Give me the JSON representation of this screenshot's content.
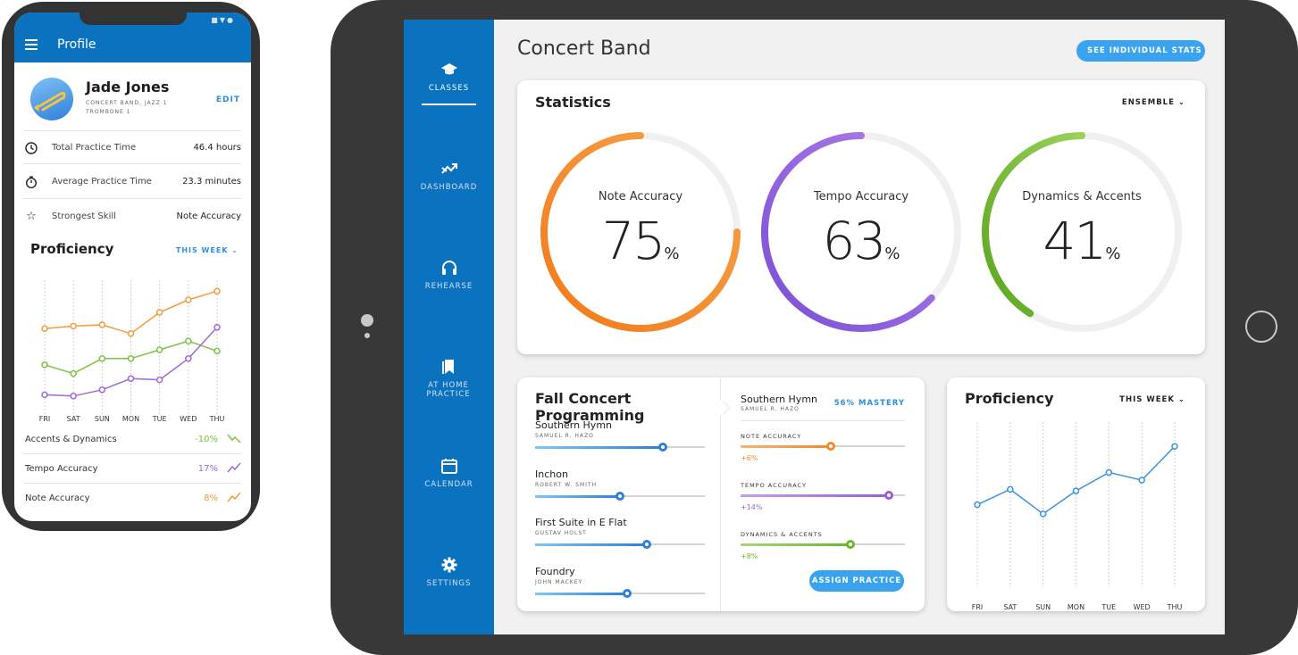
{
  "phone": {
    "title": "Profile",
    "user": {
      "name": "Jade Jones",
      "groups": "CONCERT BAND, JAZZ 1",
      "instrument": "TROMBONE 1",
      "edit_label": "EDIT"
    },
    "stats": [
      {
        "icon": "clock-icon",
        "label": "Total Practice Time",
        "value": "46.4 hours"
      },
      {
        "icon": "stopwatch-icon",
        "label": "Average Practice Time",
        "value": "23.3 minutes"
      },
      {
        "icon": "star-icon",
        "label": "Strongest Skill",
        "value": "Note Accuracy"
      }
    ],
    "proficiency": {
      "title": "Proficiency",
      "period": "THIS WEEK"
    },
    "trends": [
      {
        "label": "Accents & Dynamics",
        "value": "-10%",
        "color": "#7cc242",
        "direction": "down"
      },
      {
        "label": "Tempo Accuracy",
        "value": "17%",
        "color": "#a068d8",
        "direction": "up"
      },
      {
        "label": "Note Accuracy",
        "value": "8%",
        "color": "#f39c3c",
        "direction": "up"
      }
    ]
  },
  "tablet": {
    "nav": [
      {
        "label": "CLASSES",
        "icon": "graduation-cap-icon",
        "active": true
      },
      {
        "label": "DASHBOARD",
        "icon": "trend-icon",
        "active": false
      },
      {
        "label": "REHEARSE",
        "icon": "headphones-icon",
        "active": false
      },
      {
        "label": "AT HOME PRACTICE",
        "icon": "bookmark-icon",
        "active": false
      },
      {
        "label": "CALENDAR",
        "icon": "calendar-icon",
        "active": false
      },
      {
        "label": "SETTINGS",
        "icon": "gear-icon",
        "active": false
      }
    ],
    "page_title": "Concert Band",
    "see_stats_label": "SEE INDIVIDUAL STATS",
    "statistics": {
      "title": "Statistics",
      "filter": "ENSEMBLE",
      "gauges": [
        {
          "label": "Note Accuracy",
          "value": "75",
          "unit": "%",
          "fraction": 0.75,
          "color_start": "#f27a1a",
          "color_end": "#f5a54a"
        },
        {
          "label": "Tempo Accuracy",
          "value": "63",
          "unit": "%",
          "fraction": 0.63,
          "color_start": "#7a4fd6",
          "color_end": "#b07ee6"
        },
        {
          "label": "Dynamics & Accents",
          "value": "41",
          "unit": "%",
          "fraction": 0.41,
          "color_start": "#5aa51e",
          "color_end": "#9bd25a"
        }
      ]
    },
    "programming": {
      "title": "Fall Concert Programming",
      "pieces": [
        {
          "title": "Southern Hymn",
          "composer": "SAMUEL R. HAZO",
          "progress": 0.75
        },
        {
          "title": "Inchon",
          "composer": "ROBERT W. SMITH",
          "progress": 0.5
        },
        {
          "title": "First Suite in E Flat",
          "composer": "GUSTAV HOLST",
          "progress": 0.66
        },
        {
          "title": "Foundry",
          "composer": "JOHN MACKEY",
          "progress": 0.54
        }
      ],
      "detail": {
        "title": "Southern Hymn",
        "composer": "SAMUEL R. HAZO",
        "mastery": "56% MASTERY",
        "skills": [
          {
            "label": "NOTE ACCURACY",
            "delta": "+6%",
            "progress": 0.55,
            "color": "#f2892b",
            "color_light": "#f6b27a"
          },
          {
            "label": "TEMPO ACCURACY",
            "delta": "+14%",
            "progress": 0.9,
            "color": "#9a5fd8",
            "color_light": "#c89cee"
          },
          {
            "label": "DYNAMICS & ACCENTS",
            "delta": "+8%",
            "progress": 0.67,
            "color": "#6bb62c",
            "color_light": "#a9d77b"
          }
        ],
        "assign_label": "ASSIGN PRACTICE"
      }
    },
    "proficiency": {
      "title": "Proficiency",
      "period": "THIS WEEK"
    }
  },
  "chart_data": [
    {
      "type": "line",
      "title": "Proficiency",
      "categories": [
        "FRI",
        "SAT",
        "SUN",
        "MON",
        "TUE",
        "WED",
        "THU"
      ],
      "ylim": [
        0,
        100
      ],
      "series": [
        {
          "color": "#f39c3c",
          "values": [
            67,
            69,
            70,
            63,
            80,
            90,
            97
          ]
        },
        {
          "color": "#7cc242",
          "values": [
            38,
            31,
            43,
            43,
            50,
            57,
            49
          ]
        },
        {
          "color": "#a068d8",
          "values": [
            14,
            13,
            18,
            27,
            26,
            43,
            68
          ]
        }
      ]
    },
    {
      "type": "line",
      "title": "Proficiency",
      "categories": [
        "FRI",
        "SAT",
        "SUN",
        "MON",
        "TUE",
        "WED",
        "THU"
      ],
      "ylim": [
        0,
        100
      ],
      "series": [
        {
          "color": "#3a93e0",
          "values": [
            52,
            62,
            46,
            61,
            73,
            68,
            90
          ]
        }
      ]
    }
  ]
}
